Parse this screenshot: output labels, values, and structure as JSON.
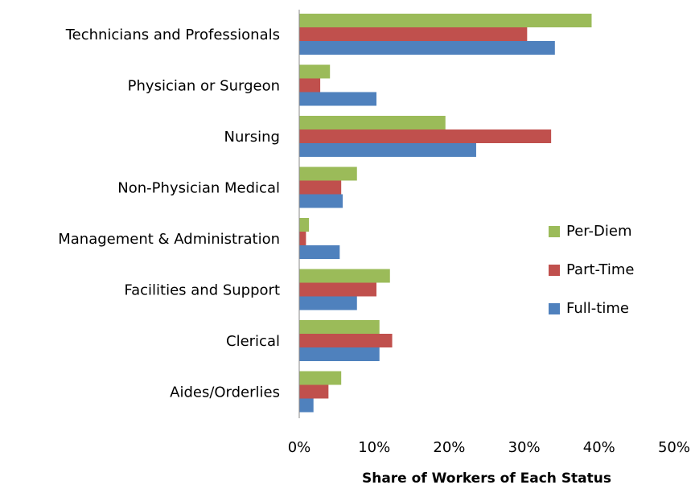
{
  "chart_data": {
    "type": "hbar",
    "categories": [
      "Technicians and Professionals",
      "Physician or Surgeon",
      "Nursing",
      "Non-Physician Medical",
      "Management & Administration",
      "Facilities and Support",
      "Clerical",
      "Aides/Orderlies"
    ],
    "series": [
      {
        "name": "Per-Diem",
        "color": "#9bbb59",
        "values": [
          39,
          4.1,
          19.5,
          7.7,
          1.3,
          12.1,
          10.7,
          5.6
        ]
      },
      {
        "name": "Part-Time",
        "color": "#c0504d",
        "values": [
          30.4,
          2.8,
          33.6,
          5.6,
          0.9,
          10.3,
          12.4,
          3.9
        ]
      },
      {
        "name": "Full-time",
        "color": "#4f81bd",
        "values": [
          34.1,
          10.3,
          23.6,
          5.8,
          5.4,
          7.7,
          10.7,
          1.9
        ]
      }
    ],
    "xlabel": "Share of Workers of Each Status",
    "xlim": [
      0,
      50
    ],
    "xticks": [
      {
        "value": 0,
        "label": "0%"
      },
      {
        "value": 10,
        "label": "10%"
      },
      {
        "value": 20,
        "label": "20%"
      },
      {
        "value": 30,
        "label": "30%"
      },
      {
        "value": 40,
        "label": "40%"
      },
      {
        "value": 50,
        "label": "50%"
      }
    ],
    "grid": false,
    "legend": "right"
  }
}
